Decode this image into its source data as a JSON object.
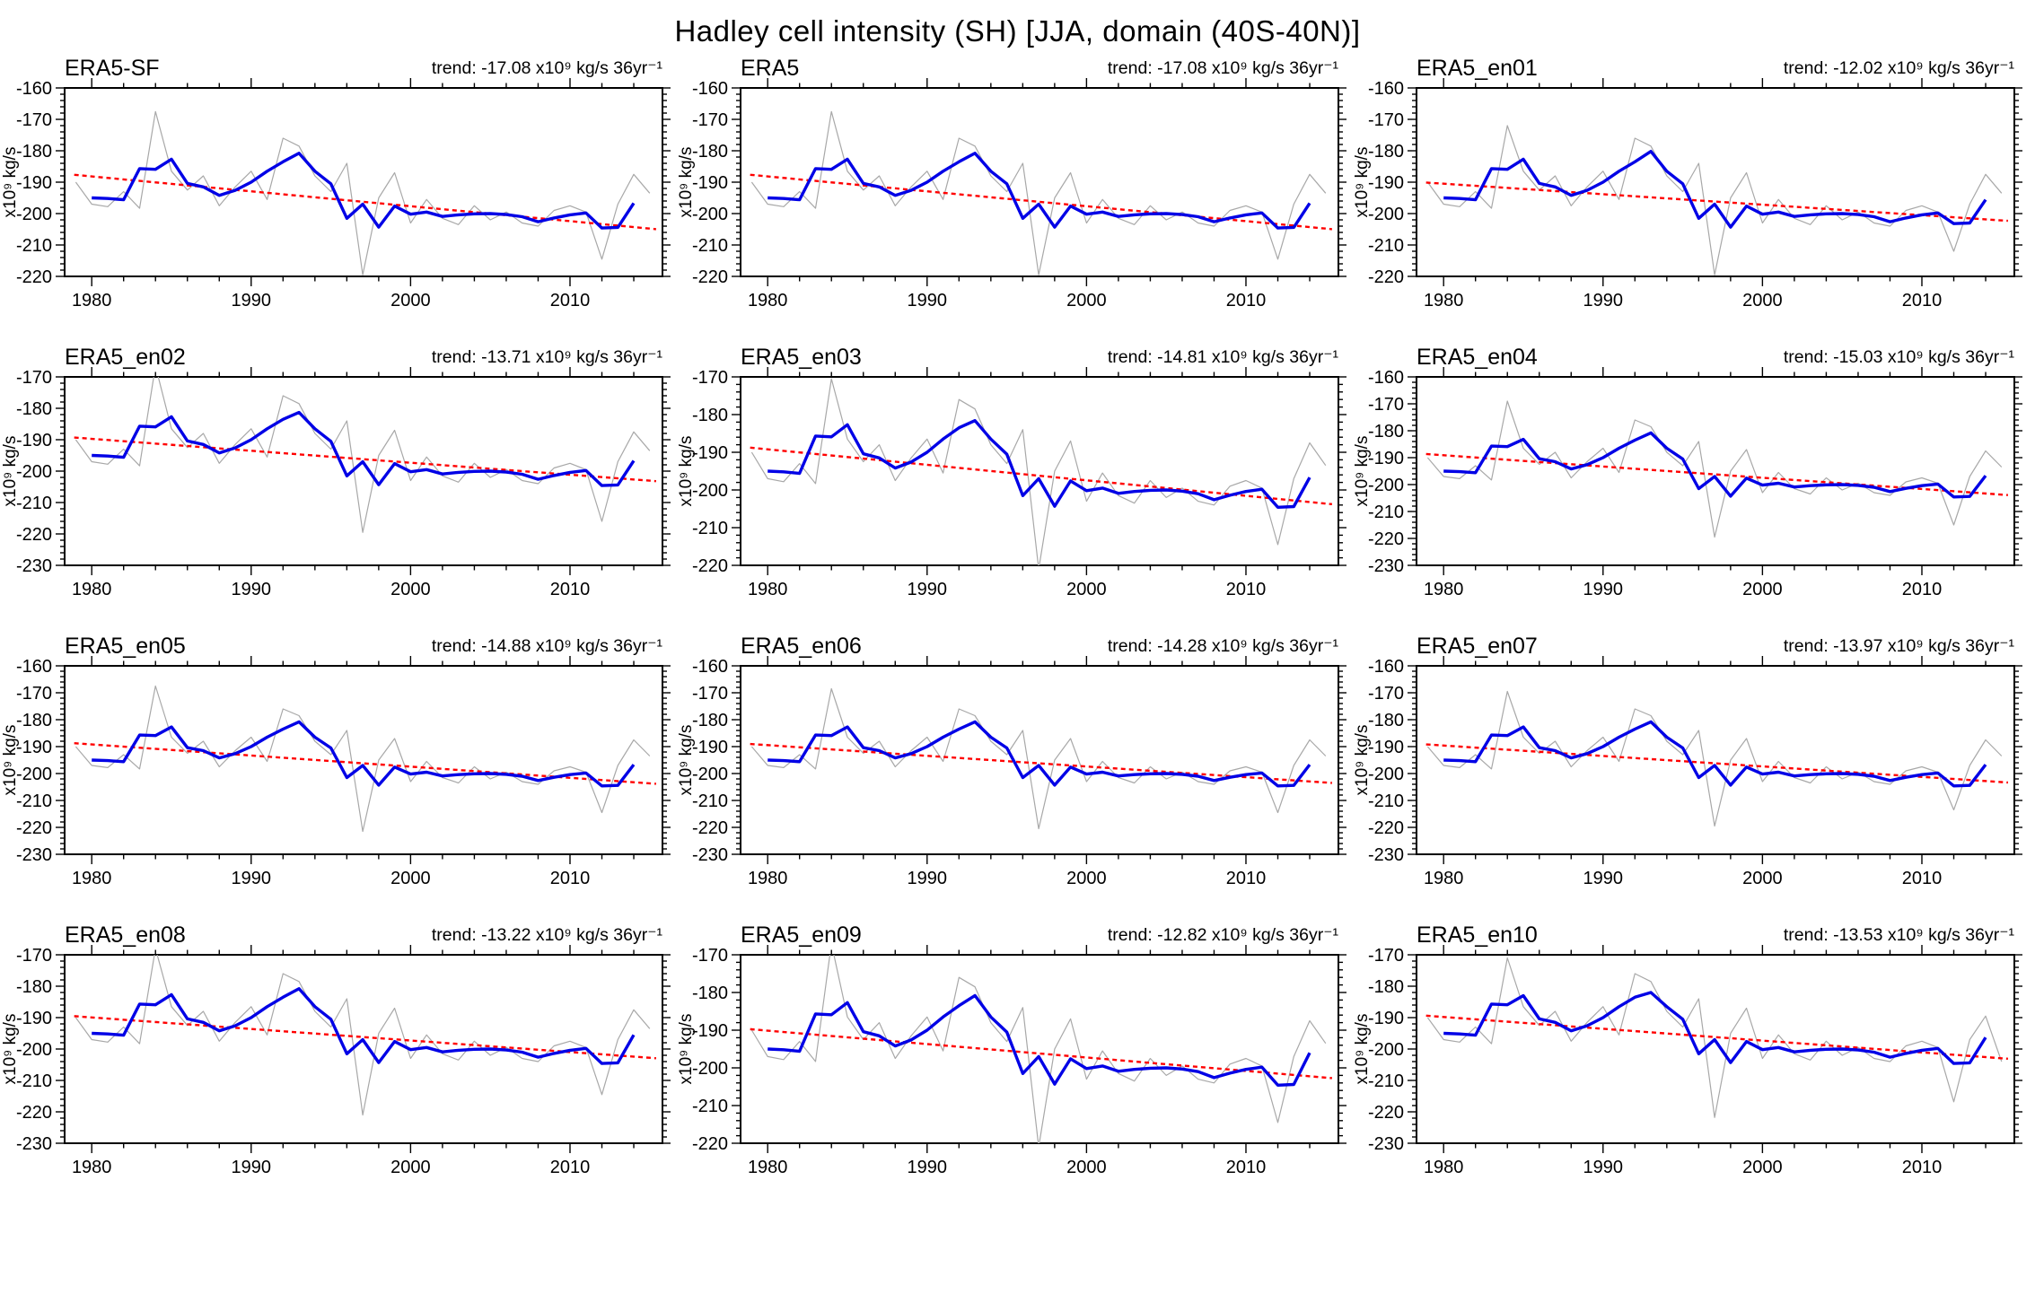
{
  "figure": {
    "title": "Hadley cell intensity (SH) [JJA, domain (40S-40N)]"
  },
  "chart_data": {
    "type": "line",
    "title": "Hadley cell intensity (SH) [JJA, domain (40S-40N)]",
    "xlabel": "",
    "ylabel": "x10⁹ kg/s",
    "xlim": [
      1978.3,
      2015.8
    ],
    "xticks": [
      1980,
      1990,
      2000,
      2010
    ],
    "x_minor_step": 2,
    "y_major_step": 10,
    "y_minor_step": 2,
    "grid": "off",
    "legend": "none",
    "colors": {
      "annual": "#a8a8a8",
      "smoothed": "#0000e6",
      "trend": "#ff0000",
      "axis": "#000000"
    },
    "trend_line": {
      "mid_value": -196.0,
      "mid_year": 1996.5,
      "x_start": 1978.9,
      "x_end": 2015.4
    },
    "base": {
      "years_annual": [
        1979,
        1980,
        1981,
        1982,
        1983,
        1984,
        1985,
        1986,
        1987,
        1988,
        1989,
        1990,
        1991,
        1992,
        1993,
        1994,
        1995,
        1996,
        1997,
        1998,
        1999,
        2000,
        2001,
        2002,
        2003,
        2004,
        2005,
        2006,
        2007,
        2008,
        2009,
        2010,
        2011,
        2012,
        2013,
        2014,
        2015
      ],
      "annual": [
        -190.0,
        -197.0,
        -197.8,
        -193.0,
        -198.3,
        -167.5,
        -186.5,
        -192.5,
        -188.0,
        -197.5,
        -191.5,
        -186.5,
        -195.5,
        -176.0,
        -178.5,
        -188.0,
        -193.0,
        -184.0,
        -219.5,
        -195.0,
        -187.0,
        -203.0,
        -195.5,
        -201.5,
        -203.5,
        -197.5,
        -202.0,
        -199.5,
        -203.0,
        -204.0,
        -199.0,
        -197.5,
        -199.5,
        -214.5,
        -197.0,
        -187.5,
        -193.5
      ],
      "years_smoothed": [
        1980,
        1981,
        1982,
        1983,
        1984,
        1985,
        1986,
        1987,
        1988,
        1989,
        1990,
        1991,
        1992,
        1993,
        1994,
        1995,
        1996,
        1997,
        1998,
        1999,
        2000,
        2001,
        2002,
        2003,
        2004,
        2005,
        2006,
        2007,
        2008,
        2009,
        2010,
        2011,
        2012,
        2013,
        2014
      ],
      "smoothed": [
        -195.0,
        -195.2,
        -195.6,
        -185.7,
        -185.9,
        -182.7,
        -190.4,
        -191.5,
        -194.2,
        -192.6,
        -190.0,
        -186.5,
        -183.5,
        -180.8,
        -186.5,
        -190.5,
        -201.5,
        -197.0,
        -204.3,
        -197.6,
        -200.2,
        -199.5,
        -200.9,
        -200.4,
        -200.1,
        -200.0,
        -200.3,
        -201.0,
        -202.6,
        -201.4,
        -200.4,
        -199.8,
        -204.6,
        -204.4,
        -196.7
      ]
    },
    "panels": [
      {
        "id": "ERA5-SF",
        "title": "ERA5-SF",
        "trend_value": -17.08,
        "trend_label": "trend: -17.08 x10⁹ kg/s 36yr⁻¹",
        "ylim": [
          -220,
          -160
        ],
        "annual_overrides": {},
        "smoothed_overrides": {}
      },
      {
        "id": "ERA5",
        "title": "ERA5",
        "trend_value": -17.08,
        "trend_label": "trend: -17.08 x10⁹ kg/s 36yr⁻¹",
        "ylim": [
          -220,
          -160
        ],
        "annual_overrides": {},
        "smoothed_overrides": {}
      },
      {
        "id": "ERA5_en01",
        "title": "ERA5_en01",
        "trend_value": -12.02,
        "trend_label": "trend: -12.02 x10⁹ kg/s 36yr⁻¹",
        "ylim": [
          -220,
          -160
        ],
        "annual_overrides": {
          "1984": -172.0,
          "2012": -212.0
        },
        "smoothed_overrides": {
          "1993": -180.2,
          "2012": -203.2,
          "2013": -203.0,
          "2014": -195.6
        }
      },
      {
        "id": "ERA5_en02",
        "title": "ERA5_en02",
        "trend_value": -13.71,
        "trend_label": "trend: -13.71 x10⁹ kg/s 36yr⁻¹",
        "ylim": [
          -230,
          -170
        ],
        "annual_overrides": {
          "1984": -166.5,
          "2012": -216.0
        },
        "smoothed_overrides": {
          "1993": -181.3
        }
      },
      {
        "id": "ERA5_en03",
        "title": "ERA5_en03",
        "trend_value": -14.81,
        "trend_label": "trend: -14.81 x10⁹ kg/s 36yr⁻¹",
        "ylim": [
          -220,
          -170
        ],
        "annual_overrides": {
          "1984": -170.5,
          "1997": -221.0
        },
        "smoothed_overrides": {
          "1993": -181.6
        }
      },
      {
        "id": "ERA5_en04",
        "title": "ERA5_en04",
        "trend_value": -15.03,
        "trend_label": "trend: -15.03 x10⁹ kg/s 36yr⁻¹",
        "ylim": [
          -230,
          -160
        ],
        "annual_overrides": {
          "1984": -169.0,
          "2012": -215.0
        },
        "smoothed_overrides": {
          "1985": -183.2
        }
      },
      {
        "id": "ERA5_en05",
        "title": "ERA5_en05",
        "trend_value": -14.88,
        "trend_label": "trend: -14.88 x10⁹ kg/s 36yr⁻¹",
        "ylim": [
          -230,
          -160
        ],
        "annual_overrides": {
          "1997": -221.5
        },
        "smoothed_overrides": {}
      },
      {
        "id": "ERA5_en06",
        "title": "ERA5_en06",
        "trend_value": -14.28,
        "trend_label": "trend: -14.28 x10⁹ kg/s 36yr⁻¹",
        "ylim": [
          -230,
          -160
        ],
        "annual_overrides": {
          "1984": -168.5,
          "1997": -220.5
        },
        "smoothed_overrides": {}
      },
      {
        "id": "ERA5_en07",
        "title": "ERA5_en07",
        "trend_value": -13.97,
        "trend_label": "trend: -13.97 x10⁹ kg/s 36yr⁻¹",
        "ylim": [
          -230,
          -160
        ],
        "annual_overrides": {
          "1984": -169.5,
          "2012": -213.5
        },
        "smoothed_overrides": {}
      },
      {
        "id": "ERA5_en08",
        "title": "ERA5_en08",
        "trend_value": -13.22,
        "trend_label": "trend: -13.22 x10⁹ kg/s 36yr⁻¹",
        "ylim": [
          -230,
          -170
        ],
        "annual_overrides": {
          "1984": -168.0,
          "1997": -221.0
        },
        "smoothed_overrides": {
          "2014": -195.5
        }
      },
      {
        "id": "ERA5_en09",
        "title": "ERA5_en09",
        "trend_value": -12.82,
        "trend_label": "trend: -12.82 x10⁹ kg/s 36yr⁻¹",
        "ylim": [
          -220,
          -170
        ],
        "annual_overrides": {
          "1984": -167.0,
          "1997": -221.0
        },
        "smoothed_overrides": {
          "2014": -196.0
        }
      },
      {
        "id": "ERA5_en10",
        "title": "ERA5_en10",
        "trend_value": -13.53,
        "trend_label": "trend: -13.53 x10⁹ kg/s 36yr⁻¹",
        "ylim": [
          -230,
          -170
        ],
        "annual_overrides": {
          "1984": -171.0,
          "1997": -221.8,
          "2012": -216.8,
          "2014": -189.5,
          "2015": -204.0
        },
        "smoothed_overrides": {
          "1985": -183.0,
          "1993": -182.0,
          "2014": -196.3
        }
      }
    ]
  }
}
